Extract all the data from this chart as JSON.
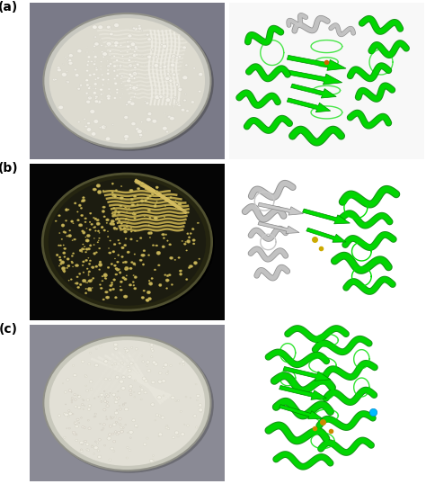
{
  "figsize": [
    4.74,
    5.38
  ],
  "dpi": 100,
  "bg_color": "#ffffff",
  "panel_labels": [
    "(a)",
    "(b)",
    "(c)"
  ],
  "label_fontsize": 10,
  "label_fontweight": "bold",
  "left_bg_colors": [
    "#7a7a88",
    "#050505",
    "#8a8a95"
  ],
  "plate_specs": [
    {
      "fill": "#dddbd0",
      "edge": "#b8b8b0",
      "rim": "#c8c8c0",
      "colony_color": "#f5f3ec",
      "colony_edge": "#d0cec4",
      "streak_color": "#e8e6de",
      "bg_type": "light"
    },
    {
      "fill": "#1a1a10",
      "edge": "#404030",
      "rim": "#505040",
      "colony_color": "#d4c870",
      "colony_edge": "#b0a450",
      "streak_color": "#c8b858",
      "bg_type": "dark"
    },
    {
      "fill": "#e0ded4",
      "edge": "#b8b8a8",
      "rim": "#c8c8b8",
      "colony_color": "#f0eee4",
      "colony_edge": "#d0cec0",
      "streak_color": "#e4e2d8",
      "bg_type": "light"
    }
  ],
  "protein_bg": "#ffffff",
  "protein_green": "#00dd00",
  "protein_dark_green": "#008800",
  "protein_gray": "#c8c8c8",
  "protein_dark_gray": "#888888"
}
